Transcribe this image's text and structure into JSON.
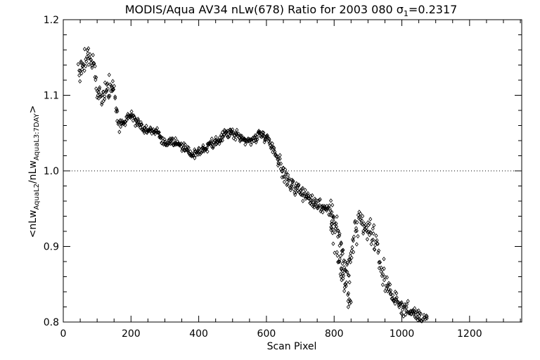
{
  "chart_data": {
    "type": "scatter",
    "title_main": "MODIS/Aqua AV34 nLw(678) Ratio for 2003 080 ",
    "title_sigma": "σ",
    "title_sigma_sub": "1",
    "title_sigma_value": "=0.2317",
    "xlabel": "Scan Pixel",
    "ylabel_parts": {
      "open": "<nLw",
      "sub1": "AquaL2",
      "mid": "/nLw",
      "sub2": "AquaL3:7DAY",
      "close": ">"
    },
    "xlim": [
      0,
      1354
    ],
    "ylim": [
      0.8,
      1.2
    ],
    "x_ticks": [
      0,
      200,
      400,
      600,
      800,
      1000,
      1200
    ],
    "x_tick_labels": [
      "0",
      "200",
      "400",
      "600",
      "800",
      "1000",
      "1200"
    ],
    "y_ticks": [
      0.8,
      0.9,
      1.0,
      1.1,
      1.2
    ],
    "y_tick_labels": [
      "0.8",
      "0.9",
      "1.0",
      "1.1",
      "1.2"
    ],
    "reference_line": {
      "y": 1.0,
      "style": "dotted"
    },
    "marker": "diamond",
    "series_trend": {
      "x": [
        45,
        60,
        75,
        90,
        100,
        115,
        130,
        150,
        165,
        180,
        200,
        220,
        240,
        260,
        280,
        300,
        320,
        340,
        360,
        380,
        400,
        420,
        440,
        460,
        480,
        500,
        520,
        540,
        560,
        580,
        600,
        620,
        640,
        650,
        660,
        680,
        700,
        720,
        740,
        760,
        780,
        800,
        820,
        840,
        860,
        880,
        900,
        920,
        940,
        960,
        980,
        1000,
        1020,
        1040,
        1060,
        1075
      ],
      "y": [
        1.13,
        1.14,
        1.155,
        1.14,
        1.105,
        1.1,
        1.11,
        1.105,
        1.06,
        1.065,
        1.075,
        1.065,
        1.055,
        1.055,
        1.05,
        1.035,
        1.04,
        1.035,
        1.03,
        1.02,
        1.025,
        1.03,
        1.035,
        1.04,
        1.05,
        1.05,
        1.045,
        1.04,
        1.04,
        1.05,
        1.045,
        1.03,
        1.01,
        0.995,
        0.99,
        0.98,
        0.975,
        0.965,
        0.96,
        0.955,
        0.95,
        0.94,
        0.9,
        0.86,
        0.915,
        0.93,
        0.92,
        0.91,
        0.87,
        0.845,
        0.83,
        0.82,
        0.815,
        0.81,
        0.805,
        0.8
      ]
    },
    "series_branch": {
      "x": [
        790,
        800,
        810,
        820,
        830,
        840,
        850
      ],
      "y": [
        0.925,
        0.9,
        0.885,
        0.87,
        0.855,
        0.84,
        0.83
      ]
    },
    "spread_bands": [
      {
        "x": [
          40,
          90
        ],
        "spread": 0.025
      },
      {
        "x": [
          90,
          170
        ],
        "spread": 0.02
      },
      {
        "x": [
          170,
          640
        ],
        "spread": 0.01
      },
      {
        "x": [
          640,
          800
        ],
        "spread": 0.018
      },
      {
        "x": [
          800,
          960
        ],
        "spread": 0.03
      },
      {
        "x": [
          960,
          1080
        ],
        "spread": 0.015
      }
    ],
    "point_count": 760
  }
}
